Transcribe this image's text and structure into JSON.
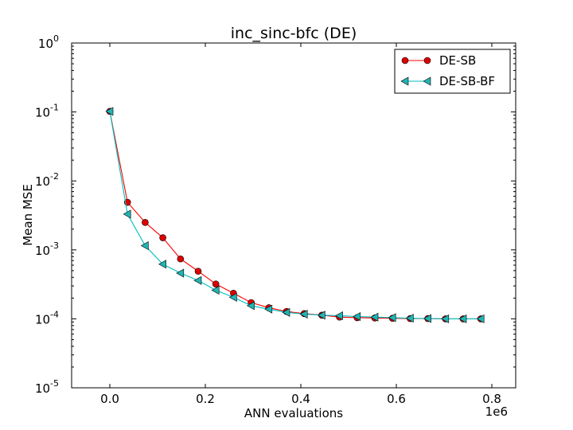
{
  "chart_data": {
    "type": "line",
    "title": "inc_sinc-bfc (DE)",
    "xlabel": "ANN evaluations",
    "ylabel": "Mean MSE",
    "x_offset_label": "1e6",
    "xlim": [
      -0.08,
      0.85
    ],
    "ylim_exponent": [
      -5,
      0
    ],
    "yscale": "log",
    "grid": false,
    "legend_position": "top-right",
    "x_ticks": [
      0.0,
      0.2,
      0.4,
      0.6,
      0.8
    ],
    "x_tick_labels": [
      "0.0",
      "0.2",
      "0.4",
      "0.6",
      "0.8"
    ],
    "y_ticks": [
      -5,
      -4,
      -3,
      -2,
      -1,
      0
    ],
    "y_tick_base": "10",
    "y_tick_exponents": [
      "-5",
      "-4",
      "-3",
      "-2",
      "-1",
      "0"
    ],
    "x": [
      0.0,
      0.037,
      0.074,
      0.111,
      0.148,
      0.185,
      0.222,
      0.259,
      0.296,
      0.333,
      0.37,
      0.407,
      0.444,
      0.481,
      0.518,
      0.555,
      0.592,
      0.629,
      0.666,
      0.703,
      0.74,
      0.777
    ],
    "series": [
      {
        "name": "DE-SB",
        "color": "#ff0000",
        "marker": "circle",
        "marker_fill": "#dd0000",
        "values": [
          0.102,
          0.0049,
          0.0025,
          0.0015,
          0.00074,
          0.00049,
          0.00032,
          0.000235,
          0.000172,
          0.000145,
          0.000128,
          0.000119,
          0.000113,
          0.000106,
          0.000104,
          0.000103,
          0.000102,
          0.000101,
          0.000101,
          0.0001,
          0.0001,
          0.0001
        ]
      },
      {
        "name": "DE-SB-BF",
        "color": "#00bfbf",
        "marker": "triangle-left",
        "marker_fill": "#22b4b4",
        "values": [
          0.102,
          0.0033,
          0.00115,
          0.00062,
          0.00046,
          0.00036,
          0.00026,
          0.000205,
          0.000155,
          0.000138,
          0.000124,
          0.000117,
          0.000113,
          0.000111,
          0.000108,
          0.000106,
          0.000104,
          0.000102,
          0.000101,
          0.0001,
          0.0001,
          0.0001
        ]
      }
    ]
  }
}
